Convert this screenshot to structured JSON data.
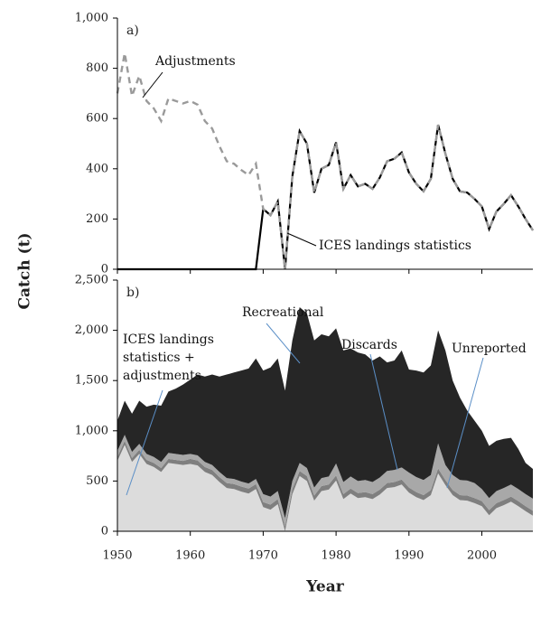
{
  "ylabel": "Catch (t)",
  "xlabel": "Year",
  "chart_data": [
    {
      "type": "line",
      "panel": "a)",
      "x": [
        1950,
        1951,
        1952,
        1953,
        1954,
        1955,
        1956,
        1957,
        1958,
        1959,
        1960,
        1961,
        1962,
        1963,
        1964,
        1965,
        1966,
        1967,
        1968,
        1969,
        1970,
        1971,
        1972,
        1973,
        1974,
        1975,
        1976,
        1977,
        1978,
        1979,
        1980,
        1981,
        1982,
        1983,
        1984,
        1985,
        1986,
        1987,
        1988,
        1989,
        1990,
        1991,
        1992,
        1993,
        1994,
        1995,
        1996,
        1997,
        1998,
        1999,
        2000,
        2001,
        2002,
        2003,
        2004,
        2005,
        2006,
        2007
      ],
      "xlim": [
        1950,
        2007
      ],
      "xticks": [
        1950,
        1960,
        1970,
        1980,
        1990,
        2000
      ],
      "ylim": [
        0,
        1000
      ],
      "yticks": [
        0,
        200,
        400,
        600,
        800,
        {
          "value": 1000,
          "label": "1,000"
        }
      ],
      "series": [
        {
          "name": "ICES landings statistics",
          "color": "#000000",
          "dashed": false,
          "values": [
            0,
            0,
            0,
            0,
            0,
            0,
            0,
            0,
            0,
            0,
            0,
            0,
            0,
            0,
            0,
            0,
            0,
            0,
            0,
            0,
            240,
            215,
            270,
            0,
            370,
            550,
            500,
            305,
            400,
            415,
            505,
            320,
            375,
            330,
            340,
            320,
            365,
            430,
            440,
            465,
            385,
            340,
            310,
            360,
            575,
            460,
            360,
            310,
            305,
            280,
            250,
            160,
            230,
            260,
            295,
            250,
            200,
            155
          ]
        },
        {
          "name": "Adjustments",
          "color": "#9a9a9a",
          "dashed": true,
          "values": [
            700,
            860,
            690,
            770,
            670,
            640,
            590,
            680,
            670,
            660,
            670,
            655,
            590,
            560,
            490,
            430,
            420,
            395,
            375,
            420,
            240,
            215,
            270,
            0,
            370,
            550,
            500,
            305,
            400,
            415,
            505,
            320,
            375,
            330,
            340,
            320,
            365,
            430,
            440,
            465,
            385,
            340,
            310,
            360,
            575,
            460,
            360,
            310,
            305,
            280,
            250,
            160,
            230,
            260,
            295,
            250,
            200,
            155
          ]
        }
      ]
    },
    {
      "type": "stacked_area",
      "panel": "b)",
      "x": [
        1950,
        1951,
        1952,
        1953,
        1954,
        1955,
        1956,
        1957,
        1958,
        1959,
        1960,
        1961,
        1962,
        1963,
        1964,
        1965,
        1966,
        1967,
        1968,
        1969,
        1970,
        1971,
        1972,
        1973,
        1974,
        1975,
        1976,
        1977,
        1978,
        1979,
        1980,
        1981,
        1982,
        1983,
        1984,
        1985,
        1986,
        1987,
        1988,
        1989,
        1990,
        1991,
        1992,
        1993,
        1994,
        1995,
        1996,
        1997,
        1998,
        1999,
        2000,
        2001,
        2002,
        2003,
        2004,
        2005,
        2006,
        2007
      ],
      "xlim": [
        1950,
        2007
      ],
      "xticks": [
        1950,
        1960,
        1970,
        1980,
        1990,
        2000
      ],
      "ylim": [
        0,
        2500
      ],
      "yticks": [
        0,
        500,
        {
          "value": 1000,
          "label": "1,000"
        },
        {
          "value": 1500,
          "label": "1,500"
        },
        {
          "value": 2000,
          "label": "2,000"
        },
        {
          "value": 2500,
          "label": "2,500"
        }
      ],
      "series": [
        {
          "name": "ICES landings statistics + adjustments",
          "color": "#dcdcdc",
          "values": [
            700,
            860,
            690,
            770,
            670,
            640,
            590,
            680,
            670,
            660,
            670,
            655,
            590,
            560,
            490,
            430,
            420,
            395,
            375,
            420,
            240,
            215,
            270,
            0,
            370,
            550,
            500,
            305,
            400,
            415,
            505,
            320,
            375,
            330,
            340,
            320,
            365,
            430,
            440,
            465,
            385,
            340,
            310,
            360,
            575,
            460,
            360,
            310,
            305,
            280,
            250,
            160,
            230,
            260,
            295,
            250,
            200,
            155
          ]
        },
        {
          "name": "Unreported",
          "color": "#7f7f7f",
          "values": [
            40,
            40,
            40,
            40,
            40,
            40,
            40,
            40,
            40,
            40,
            50,
            50,
            50,
            50,
            50,
            50,
            50,
            50,
            50,
            50,
            50,
            50,
            50,
            50,
            50,
            50,
            50,
            50,
            50,
            50,
            50,
            50,
            50,
            50,
            50,
            50,
            50,
            50,
            50,
            50,
            50,
            50,
            50,
            50,
            50,
            50,
            50,
            50,
            50,
            50,
            50,
            50,
            50,
            50,
            50,
            50,
            50,
            50
          ]
        },
        {
          "name": "Discards",
          "color": "#a8a8a8",
          "values": [
            60,
            60,
            60,
            60,
            60,
            60,
            60,
            60,
            60,
            60,
            50,
            50,
            50,
            50,
            50,
            50,
            50,
            50,
            50,
            50,
            80,
            80,
            80,
            80,
            80,
            80,
            80,
            80,
            80,
            80,
            120,
            120,
            120,
            120,
            120,
            120,
            120,
            120,
            120,
            120,
            150,
            150,
            150,
            150,
            250,
            150,
            150,
            150,
            150,
            150,
            120,
            120,
            120,
            120,
            120,
            120,
            120,
            120
          ]
        },
        {
          "name": "Recreational",
          "color": "#262626",
          "values": [
            300,
            340,
            380,
            430,
            470,
            520,
            560,
            610,
            650,
            700,
            740,
            805,
            850,
            900,
            950,
            1030,
            1060,
            1105,
            1145,
            1200,
            1230,
            1285,
            1320,
            1270,
            1400,
            1550,
            1540,
            1465,
            1430,
            1395,
            1345,
            1310,
            1275,
            1280,
            1250,
            1210,
            1205,
            1080,
            1090,
            1165,
            1025,
            1060,
            1070,
            1090,
            1125,
            1140,
            940,
            820,
            695,
            620,
            580,
            520,
            500,
            490,
            465,
            400,
            310,
            295
          ]
        }
      ]
    }
  ]
}
